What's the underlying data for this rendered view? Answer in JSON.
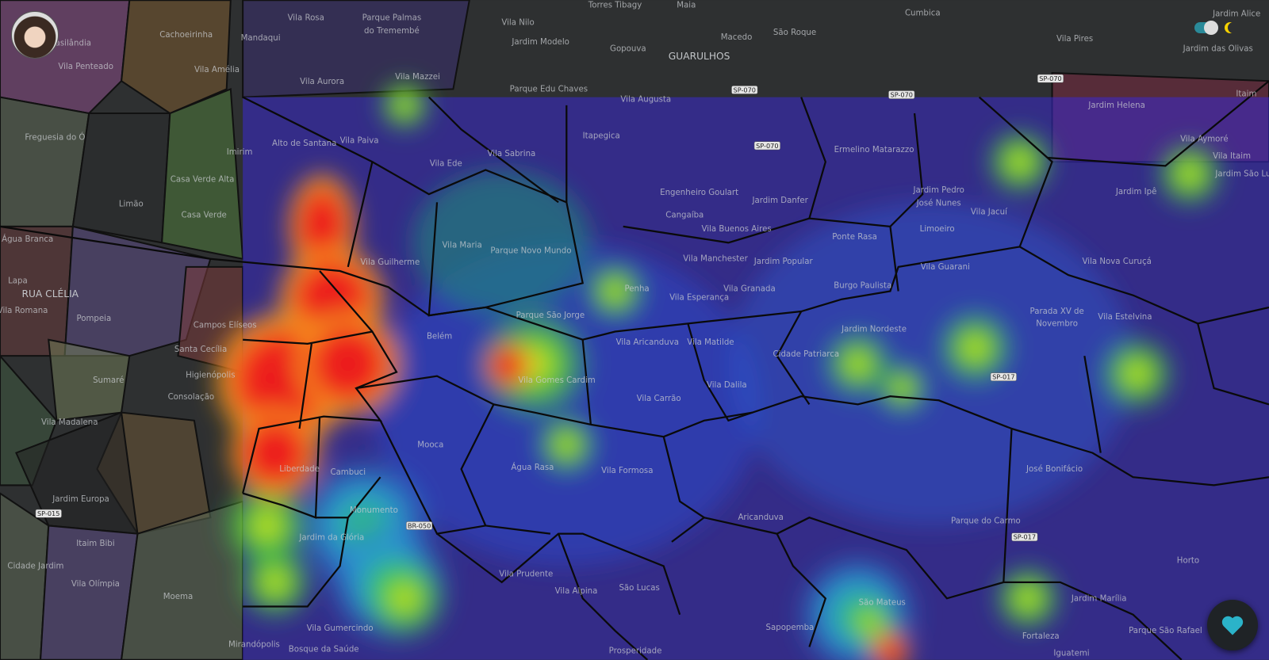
{
  "map": {
    "labels": [
      "Torres Tibagy",
      "Maia",
      "Cumbica",
      "Jardim Alice",
      "Vila Rosa",
      "Parque Palmas",
      "do Tremembé",
      "Vila Nilo",
      "Jardim Modelo",
      "Macedo",
      "São Roque",
      "Gopouva",
      "GUARULHOS",
      "Vila Pires",
      "Jardim das Olivas",
      "Cachoeirinha",
      "Mandaqui",
      "Brasilândia",
      "Vila Penteado",
      "Vila Amélia",
      "Vila Aurora",
      "Vila Mazzei",
      "Parque Edu Chaves",
      "Vila Augusta",
      "Jardim Helena",
      "Itaim",
      "Freguesia do Ó",
      "Alto de Santana",
      "Vila Paiva",
      "Itapegica",
      "Ermelino Matarazzo",
      "Vila Sabrina",
      "Vila Ede",
      "Vila Aymoré",
      "Vila Itaim",
      "Jardim São Luís",
      "Imirim",
      "Casa Verde Alta",
      "Engenheiro Goulart",
      "Jardim Danfer",
      "Jardim Pedro",
      "José Nunes",
      "Jardim Ipê",
      "Limão",
      "Casa Verde",
      "Cangaíba",
      "Vila Jacuí",
      "Limoeiro",
      "Vila Buenos Aires",
      "Ponte Rasa",
      "Água Branca",
      "Vila Maria",
      "Parque Novo Mundo",
      "Vila Guilherme",
      "Vila Nova Curuçá",
      "Jardim Popular",
      "Vila Manchester",
      "Vila Guarani",
      "Lapa",
      "Penha",
      "Burgo Paulista",
      "Vila Granada",
      "Vila Esperança",
      "RUA CLÉLIA",
      "Vila Romana",
      "Pompeia",
      "Parque São Jorge",
      "Parada XV de",
      "Novembro",
      "Vila Estelvina",
      "Campos Elíseos",
      "Belém",
      "Jardim Nordeste",
      "Vila Aricanduva",
      "Vila Matilde",
      "Santa Cecília",
      "Cidade Patriarca",
      "Higienópolis",
      "Vila Gomes Cardim",
      "Sumaré",
      "Vila Dalila",
      "Consolação",
      "Vila Carrão",
      "Vila Madalena",
      "Mooca",
      "Água Rasa",
      "Vila Formosa",
      "Liberdade",
      "Cambuci",
      "José Bonifácio",
      "Jardim Europa",
      "Aricanduva",
      "Parque do Carmo",
      "Monumento",
      "Itaim Bibi",
      "Jardim da Glória",
      "Cidade Jardim",
      "Vila Olímpia",
      "Vila Prudente",
      "Moema",
      "Vila Alpina",
      "São Lucas",
      "Jardim Marília",
      "São Mateus",
      "Sapopemba",
      "Vila Gumercindo",
      "Fortaleza",
      "Mirandópolis",
      "Bosque da Saúde",
      "Prosperidade",
      "Iguatemi",
      "Horto",
      "Parque São Rafael"
    ],
    "road_shields": [
      "SP-070",
      "SP-070",
      "SP-070",
      "SP-070",
      "SP-015",
      "SP-017",
      "SP-017",
      "BR-050"
    ]
  }
}
